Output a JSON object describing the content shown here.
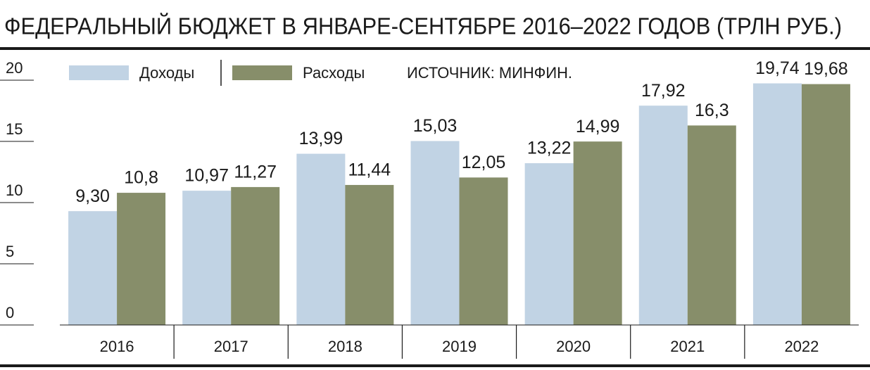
{
  "chart_data": {
    "type": "bar",
    "title": "ФЕДЕРАЛЬНЫЙ БЮДЖЕТ В ЯНВАРЕ-СЕНТЯБРЕ 2016–2022 ГОДОВ (ТРЛН РУБ.)",
    "source": "ИСТОЧНИК: МИНФИН.",
    "categories": [
      "2016",
      "2017",
      "2018",
      "2019",
      "2020",
      "2021",
      "2022"
    ],
    "series": [
      {
        "name": "Доходы",
        "color": "#c1d3e4",
        "values": [
          9.3,
          10.97,
          13.99,
          15.03,
          13.22,
          17.92,
          19.74
        ],
        "value_labels": [
          "9,30",
          "10,97",
          "13,99",
          "15,03",
          "13,22",
          "17,92",
          "19,74"
        ]
      },
      {
        "name": "Расходы",
        "color": "#878e6a",
        "values": [
          10.8,
          11.27,
          11.44,
          12.05,
          14.99,
          16.3,
          19.68
        ],
        "value_labels": [
          "10,8",
          "11,27",
          "11,44",
          "12,05",
          "14,99",
          "16,3",
          "19,68"
        ]
      }
    ],
    "ylim": [
      0,
      20
    ],
    "yticks": [
      0,
      5,
      10,
      15,
      20
    ]
  }
}
